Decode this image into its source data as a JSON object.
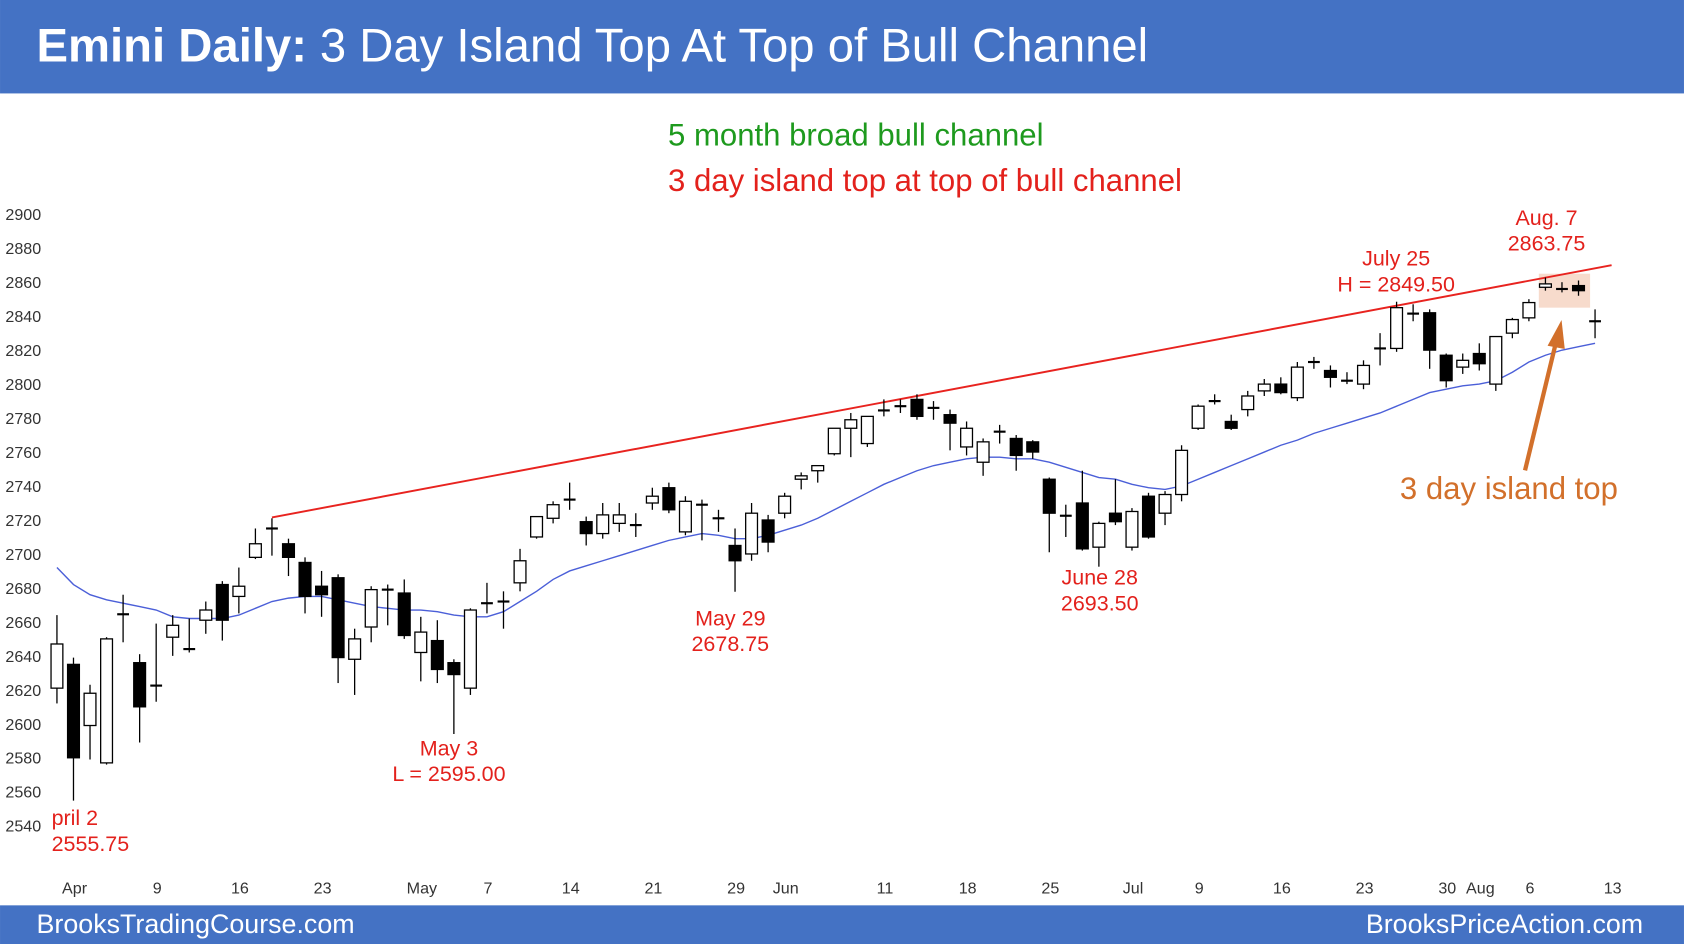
{
  "title_bold": "Emini Daily:",
  "title": "3 Day Island Top At Top of Bull Channel",
  "footer_left": "BrooksTradingCourse.com",
  "footer_right": "BrooksPriceAction.com",
  "chart_data": {
    "type": "candlestick",
    "subtitles": [
      {
        "text": "5 month broad bull channel",
        "color": "#1e9a1e"
      },
      {
        "text": "3 day island top at top of bull channel",
        "color": "#e3211c"
      }
    ],
    "categories": [
      null,
      "Apr",
      null,
      null,
      null,
      null,
      "9",
      null,
      null,
      null,
      null,
      "16",
      null,
      null,
      null,
      null,
      "23",
      null,
      null,
      null,
      null,
      null,
      "May",
      null,
      null,
      null,
      "7",
      null,
      null,
      null,
      null,
      "14",
      null,
      null,
      null,
      null,
      "21",
      null,
      null,
      null,
      null,
      "29",
      null,
      null,
      "Jun",
      null,
      null,
      null,
      null,
      null,
      "11",
      null,
      null,
      null,
      null,
      "18",
      null,
      null,
      null,
      null,
      "25",
      null,
      null,
      null,
      null,
      "Jul",
      null,
      null,
      null,
      "9",
      null,
      null,
      null,
      null,
      "16",
      null,
      null,
      null,
      null,
      "23",
      null,
      null,
      null,
      null,
      "30",
      null,
      "Aug",
      null,
      null,
      "6",
      null,
      null,
      null,
      null,
      "13"
    ],
    "open": [
      2622,
      2636,
      2600,
      2578,
      2665,
      2637,
      2623,
      2652,
      2645,
      2662,
      2683,
      2676,
      2699,
      2716,
      2707,
      2696,
      2682,
      2687,
      2639,
      2658,
      2680,
      2678,
      2643,
      2650,
      2637,
      2622,
      2672,
      2673,
      2684,
      2711,
      2722,
      2733,
      2720,
      2713,
      2719,
      2718,
      2731,
      2740,
      2714,
      2730,
      2722,
      2706,
      2701,
      2721,
      2725,
      2745,
      2750,
      2760,
      2775,
      2766,
      2785,
      2788,
      2792,
      2787,
      2783,
      2764,
      2755,
      2773,
      2769,
      2767,
      2745,
      2723,
      2731,
      2705,
      2725,
      2705,
      2735,
      2725,
      2736,
      2775,
      2791,
      2779,
      2786,
      2797,
      2801,
      2793,
      2814,
      2809,
      2803,
      2801,
      2822,
      2822,
      2842,
      2843,
      2818,
      2811,
      2819,
      2801,
      2831,
      2840,
      2858,
      2857,
      2859,
      2838,
      null
    ],
    "high": [
      2665,
      2640,
      2624,
      2652,
      2677,
      2642,
      2660,
      2665,
      2663,
      2673,
      2685,
      2693,
      2716,
      2722,
      2710,
      2699,
      2691,
      2689,
      2657,
      2682,
      2683,
      2686,
      2664,
      2662,
      2639,
      2669,
      2684,
      2679,
      2704,
      2723,
      2732,
      2743,
      2723,
      2731,
      2731,
      2725,
      2740,
      2743,
      2735,
      2733,
      2727,
      2716,
      2731,
      2724,
      2737,
      2749,
      2753,
      2775,
      2784,
      2782,
      2792,
      2792,
      2795,
      2791,
      2786,
      2779,
      2769,
      2777,
      2771,
      2768,
      2746,
      2730,
      2750,
      2720,
      2745,
      2728,
      2737,
      2738,
      2765,
      2789,
      2795,
      2783,
      2797,
      2804,
      2805,
      2814,
      2817,
      2812,
      2808,
      2815,
      2831,
      2849.5,
      2848,
      2845,
      2819,
      2819,
      2825,
      2829,
      2840,
      2851,
      2863.75,
      2861,
      2862,
      2845,
      null
    ],
    "low": [
      2613,
      2555.75,
      2580,
      2577,
      2649,
      2590,
      2614,
      2641,
      2643,
      2654,
      2650,
      2666,
      2698,
      2700,
      2688,
      2666,
      2664,
      2625,
      2618,
      2649,
      2659,
      2651,
      2626,
      2625,
      2595,
      2618,
      2666,
      2657,
      2679,
      2710,
      2719,
      2727,
      2706,
      2710,
      2714,
      2711,
      2727,
      2725,
      2712,
      2709,
      2714,
      2678.75,
      2697,
      2702,
      2722,
      2739,
      2743,
      2759,
      2758,
      2764,
      2782,
      2784,
      2780,
      2780,
      2762,
      2759,
      2747,
      2766,
      2750,
      2757,
      2702,
      2711,
      2703,
      2693.5,
      2718,
      2703,
      2710,
      2718,
      2732,
      2774,
      2789,
      2774,
      2782,
      2794,
      2795,
      2791,
      2810,
      2799,
      2801,
      2798,
      2812,
      2820,
      2838,
      2810,
      2799,
      2807,
      2809,
      2797,
      2828,
      2838,
      2856,
      2855,
      2853,
      2828,
      null
    ],
    "close": [
      2648,
      2581,
      2619,
      2651,
      2666,
      2611,
      2624,
      2659,
      2645,
      2668,
      2662,
      2682,
      2707,
      2716,
      2699,
      2676,
      2677,
      2640,
      2651,
      2680,
      2680,
      2653,
      2655,
      2633,
      2630,
      2668,
      2672,
      2673,
      2697,
      2723,
      2730,
      2733,
      2713,
      2724,
      2724,
      2718,
      2735,
      2727,
      2732,
      2730,
      2722,
      2697,
      2725,
      2708,
      2735,
      2747,
      2753,
      2775,
      2780,
      2782,
      2786,
      2788,
      2782,
      2787,
      2778,
      2775,
      2767,
      2773,
      2759,
      2761,
      2725,
      2724,
      2704,
      2719,
      2720,
      2726,
      2711,
      2736,
      2762,
      2788,
      2791,
      2775,
      2794,
      2801,
      2796,
      2811,
      2814,
      2805,
      2803,
      2812,
      2822,
      2846,
      2843,
      2821,
      2803,
      2815,
      2813,
      2829,
      2839,
      2849,
      2860,
      2857,
      2856,
      2838,
      null
    ],
    "moving_average": {
      "color": "#4b5fd8",
      "values": [
        2693,
        2683,
        2677,
        2674,
        2672,
        2670,
        2668,
        2664,
        2663,
        2663,
        2663,
        2665,
        2669,
        2673,
        2675,
        2676,
        2676,
        2674,
        2672,
        2670,
        2669,
        2668,
        2668,
        2667,
        2665,
        2664,
        2664,
        2667,
        2673,
        2679,
        2686,
        2691,
        2694,
        2697,
        2700,
        2703,
        2706,
        2709,
        2711,
        2713,
        2712,
        2710,
        2710,
        2712,
        2715,
        2718,
        2722,
        2727,
        2732,
        2737,
        2742,
        2746,
        2750,
        2753,
        2755,
        2757,
        2758,
        2758,
        2757,
        2757,
        2755,
        2752,
        2749,
        2746,
        2745,
        2742,
        2740,
        2739,
        2741,
        2745,
        2749,
        2753,
        2757,
        2761,
        2765,
        2768,
        2772,
        2775,
        2778,
        2781,
        2784,
        2788,
        2792,
        2796,
        2798,
        2800,
        2801,
        2803,
        2808,
        2814,
        2818,
        2821,
        2823,
        2825,
        null
      ]
    },
    "trend_line": {
      "color": "#e8231f",
      "from": [
        13,
        2722.5
      ],
      "to": [
        94,
        2871
      ]
    },
    "ylim": [
      2515,
      2907
    ],
    "yticks": [
      2540,
      2560,
      2580,
      2600,
      2620,
      2640,
      2660,
      2680,
      2700,
      2720,
      2740,
      2760,
      2780,
      2800,
      2820,
      2840,
      2860,
      2880,
      2900
    ],
    "grid": false,
    "annotations": [
      {
        "lines": [
          "pril 2",
          "2555.75"
        ],
        "color": "#e3211c"
      },
      {
        "lines": [
          "May 3",
          "L = 2595.00"
        ],
        "color": "#e3211c"
      },
      {
        "lines": [
          "May 29",
          "2678.75"
        ],
        "color": "#e3211c"
      },
      {
        "lines": [
          "June 28",
          "2693.50"
        ],
        "color": "#e3211c"
      },
      {
        "lines": [
          "July 25",
          "H = 2849.50"
        ],
        "color": "#e3211c"
      },
      {
        "lines": [
          "Aug. 7",
          "2863.75"
        ],
        "color": "#e3211c"
      },
      {
        "lines": [
          "3 day island top"
        ],
        "color": "#d2702b"
      }
    ]
  }
}
